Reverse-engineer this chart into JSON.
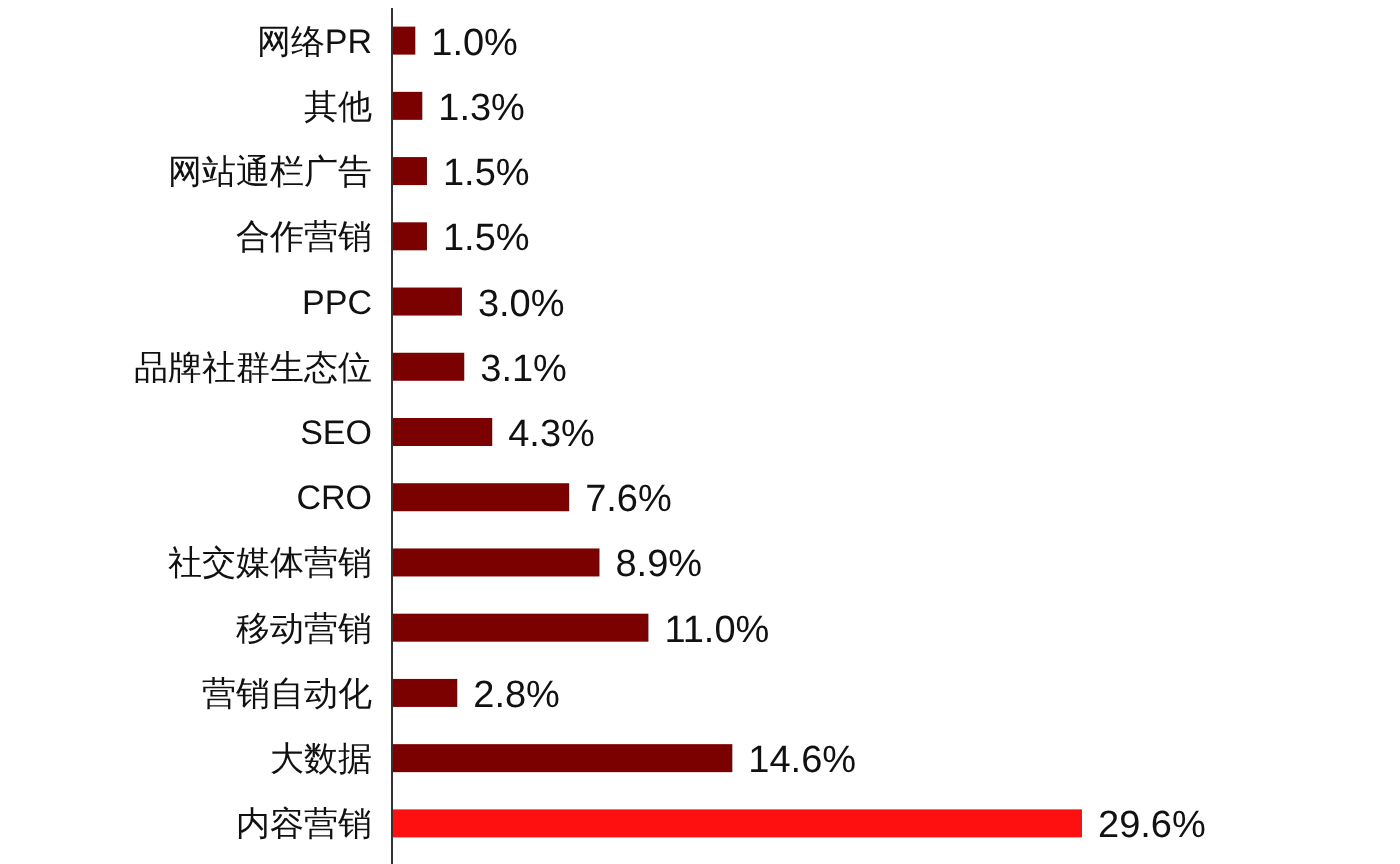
{
  "chart_data": {
    "type": "bar",
    "orientation": "horizontal",
    "categories": [
      "网络PR",
      "其他",
      "网站通栏广告",
      "合作营销",
      "PPC",
      "品牌社群生态位",
      "SEO",
      "CRO",
      "社交媒体营销",
      "移动营销",
      "营销自动化",
      "大数据",
      "内容营销"
    ],
    "values": [
      1.0,
      1.3,
      1.5,
      1.5,
      3.0,
      3.1,
      4.3,
      7.6,
      8.9,
      11.0,
      2.8,
      14.6,
      29.6
    ],
    "value_labels": [
      "1.0%",
      "1.3%",
      "1.5%",
      "1.5%",
      "3.0%",
      "3.1%",
      "4.3%",
      "7.6%",
      "8.9%",
      "11.0%",
      "2.8%",
      "14.6%",
      "29.6%"
    ],
    "colors": [
      "#7b0000",
      "#7b0000",
      "#7b0000",
      "#7b0000",
      "#7b0000",
      "#7b0000",
      "#7b0000",
      "#7b0000",
      "#7b0000",
      "#7b0000",
      "#7b0000",
      "#7b0000",
      "#ff1010"
    ]
  }
}
